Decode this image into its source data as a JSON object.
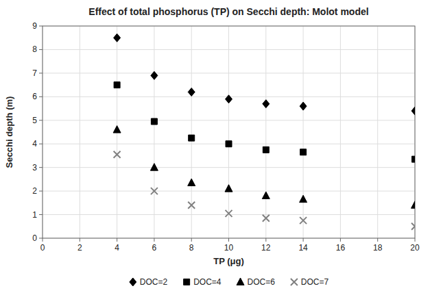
{
  "chart_data": {
    "type": "scatter",
    "title": "Effect of total phosphorus (TP) on Secchi depth: Molot model",
    "xlabel": "TP (μg)",
    "ylabel": "Secchi depth (m)",
    "x": [
      4,
      6,
      8,
      10,
      12,
      14,
      20
    ],
    "series": [
      {
        "name": "DOC=2",
        "color": "#000000",
        "marker": "diamond",
        "values": [
          8.5,
          6.9,
          6.2,
          5.9,
          5.7,
          5.6,
          5.4
        ]
      },
      {
        "name": "DOC=4",
        "color": "#000000",
        "marker": "square",
        "values": [
          6.5,
          4.95,
          4.25,
          4.0,
          3.75,
          3.65,
          3.35
        ]
      },
      {
        "name": "DOC=6",
        "color": "#000000",
        "marker": "triangle",
        "values": [
          4.6,
          3.0,
          2.35,
          2.1,
          1.8,
          1.65,
          1.4
        ]
      },
      {
        "name": "DOC=7",
        "color": "#808080",
        "marker": "x",
        "values": [
          3.55,
          2.0,
          1.4,
          1.05,
          0.85,
          0.75,
          0.5
        ]
      }
    ],
    "xlim": [
      0,
      20
    ],
    "ylim": [
      0,
      9
    ],
    "xticks": [
      0,
      2,
      4,
      6,
      8,
      10,
      12,
      14,
      16,
      18,
      20
    ],
    "yticks": [
      0,
      1,
      2,
      3,
      4,
      5,
      6,
      7,
      8,
      9
    ],
    "grid": true,
    "legend": "bottom"
  }
}
